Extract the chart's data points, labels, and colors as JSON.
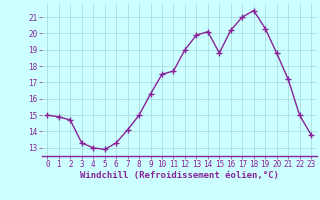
{
  "x": [
    0,
    1,
    2,
    3,
    4,
    5,
    6,
    7,
    8,
    9,
    10,
    11,
    12,
    13,
    14,
    15,
    16,
    17,
    18,
    19,
    20,
    21,
    22,
    23
  ],
  "y": [
    15.0,
    14.9,
    14.7,
    13.3,
    13.0,
    12.9,
    13.3,
    14.1,
    15.0,
    16.3,
    17.5,
    17.7,
    19.0,
    19.9,
    20.1,
    18.8,
    20.2,
    21.0,
    21.4,
    20.3,
    18.8,
    17.2,
    15.0,
    13.8
  ],
  "line_color": "#882299",
  "marker": "+",
  "markersize": 4,
  "linewidth": 1.0,
  "bg_color": "#ccffff",
  "grid_color": "#aadddd",
  "xlabel": "Windchill (Refroidissement éolien,°C)",
  "xlabel_fontsize": 6.5,
  "tick_fontsize": 5.5,
  "ylim": [
    12.5,
    21.8
  ],
  "xlim": [
    -0.5,
    23.5
  ],
  "yticks": [
    13,
    14,
    15,
    16,
    17,
    18,
    19,
    20,
    21
  ],
  "xticks": [
    0,
    1,
    2,
    3,
    4,
    5,
    6,
    7,
    8,
    9,
    10,
    11,
    12,
    13,
    14,
    15,
    16,
    17,
    18,
    19,
    20,
    21,
    22,
    23
  ]
}
